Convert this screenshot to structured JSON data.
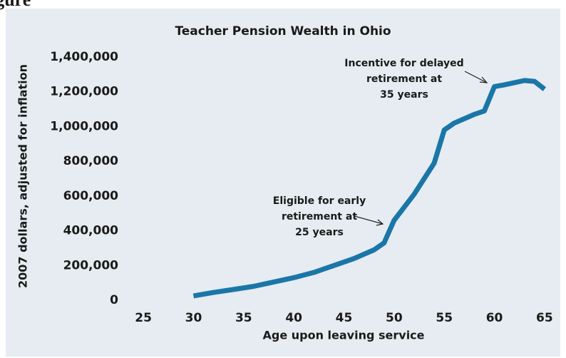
{
  "header": "igure",
  "chart_data": {
    "type": "line",
    "title": "Teacher Pension Wealth in Ohio",
    "x_label": "Age upon leaving service",
    "y_label": "2007 dollars, adjusted for inflation",
    "x": [
      30,
      32,
      34,
      36,
      38,
      40,
      42,
      44,
      46,
      48,
      49,
      50,
      52,
      54,
      55,
      56,
      58,
      59,
      60,
      61,
      63,
      64,
      65
    ],
    "series": [
      {
        "name": "Teacher pension wealth",
        "color": "#1b76a8",
        "values": [
          25000,
          45000,
          62000,
          80000,
          105000,
          130000,
          160000,
          200000,
          240000,
          290000,
          330000,
          460000,
          610000,
          790000,
          980000,
          1020000,
          1070000,
          1090000,
          1230000,
          1240000,
          1265000,
          1260000,
          1215000
        ]
      }
    ],
    "xlim": [
      23.5,
      66.5
    ],
    "xticks": [
      25,
      30,
      35,
      40,
      45,
      50,
      55,
      60,
      65
    ],
    "ylim": [
      0,
      1400000
    ],
    "yticks": [
      0,
      {
        "value": 200000,
        "label": "200,000"
      },
      {
        "value": 400000,
        "label": "400,000"
      },
      {
        "value": 600000,
        "label": "600,000"
      },
      {
        "value": 800000,
        "label": "800,000"
      },
      {
        "value": 1000000,
        "label": "1,000,000"
      },
      {
        "value": 1200000,
        "label": "1,200,000"
      },
      {
        "value": 1400000,
        "label": "1,400,000"
      }
    ],
    "annotations": [
      {
        "lines": [
          "Incentive for delayed",
          "retirement at",
          "35 years"
        ]
      },
      {
        "lines": [
          "Eligible for early",
          "retirement at",
          "25 years"
        ]
      }
    ],
    "grid": false
  }
}
